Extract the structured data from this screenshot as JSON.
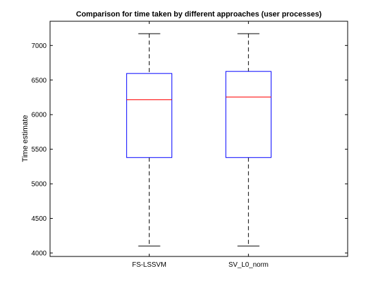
{
  "chart_data": {
    "type": "box",
    "title": "Comparison for time taken by different approaches (user processes)",
    "xlabel": "",
    "ylabel": "Time estimate",
    "ylim": [
      3950,
      7350
    ],
    "yticks": [
      4000,
      4500,
      5000,
      5500,
      6000,
      6500,
      7000
    ],
    "categories": [
      "FS-LSSVM",
      "SV_L0_norm"
    ],
    "boxes": [
      {
        "category": "FS-LSSVM",
        "min": 4100,
        "q1": 5380,
        "median": 6215,
        "q3": 6595,
        "max": 7170
      },
      {
        "category": "SV_L0_norm",
        "min": 4100,
        "q1": 5380,
        "median": 6255,
        "q3": 6625,
        "max": 7170
      }
    ],
    "grid": false,
    "colors": {
      "box": "#0000ff",
      "median": "#ff0000",
      "whisker": "#000000"
    }
  }
}
